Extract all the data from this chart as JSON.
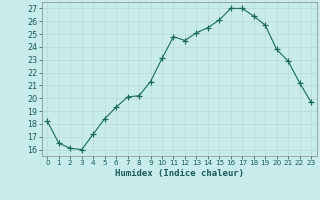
{
  "x": [
    0,
    1,
    2,
    3,
    4,
    5,
    6,
    7,
    8,
    9,
    10,
    11,
    12,
    13,
    14,
    15,
    16,
    17,
    18,
    19,
    20,
    21,
    22,
    23
  ],
  "y": [
    18.2,
    16.5,
    16.1,
    16.0,
    17.2,
    18.4,
    19.3,
    20.1,
    20.2,
    21.3,
    23.1,
    24.8,
    24.5,
    25.1,
    25.5,
    26.1,
    27.0,
    27.0,
    26.4,
    25.7,
    23.8,
    22.9,
    21.2,
    19.7
  ],
  "xlabel": "Humidex (Indice chaleur)",
  "ylabel_ticks": [
    16,
    17,
    18,
    19,
    20,
    21,
    22,
    23,
    24,
    25,
    26,
    27
  ],
  "xlim": [
    -0.5,
    23.5
  ],
  "ylim": [
    15.5,
    27.5
  ],
  "bg_color": "#c8ecec",
  "line_color": "#1a6b5a",
  "grid_color": "#b8d8d8",
  "title": ""
}
